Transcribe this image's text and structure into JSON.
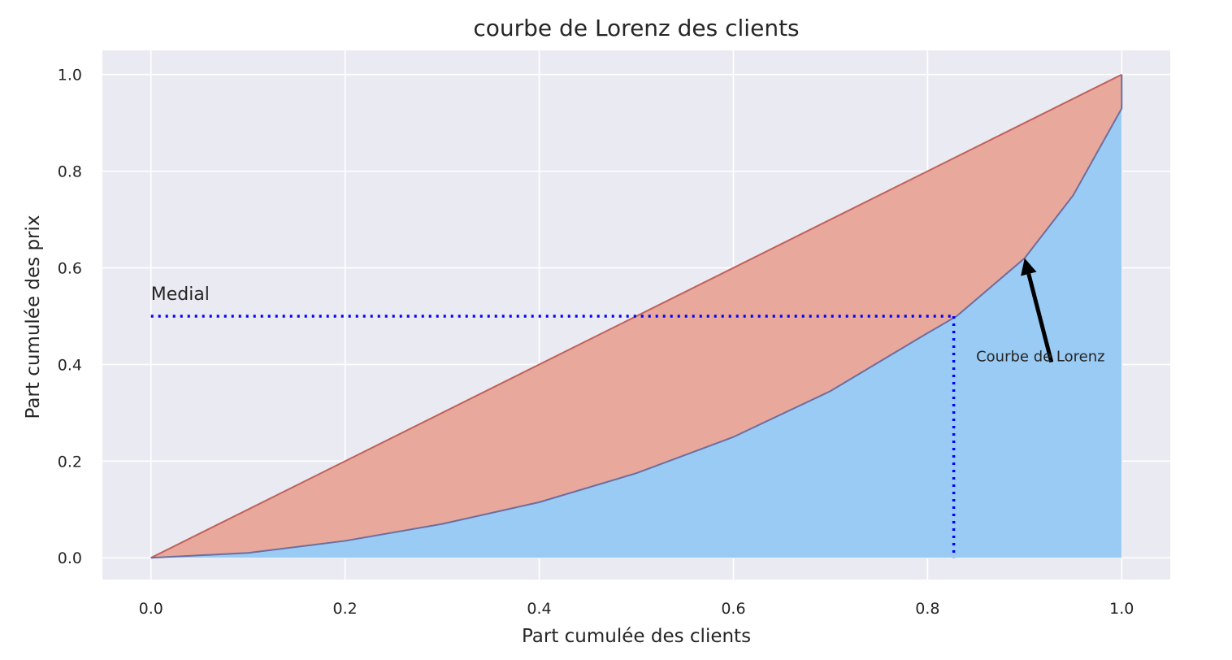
{
  "chart_data": {
    "type": "area",
    "title": "courbe de Lorenz des clients",
    "xlabel": "Part cumulée des clients",
    "ylabel": "Part cumulée des prix",
    "xlim": [
      -0.05,
      1.05
    ],
    "ylim": [
      -0.045,
      1.05
    ],
    "xticks": [
      "0.0",
      "0.2",
      "0.4",
      "0.6",
      "0.8",
      "1.0"
    ],
    "yticks": [
      "0.0",
      "0.2",
      "0.4",
      "0.6",
      "0.8",
      "1.0"
    ],
    "grid": true,
    "background": "#eaeaf2",
    "series": [
      {
        "kind": "equality_line",
        "x": [
          0.0,
          1.0
        ],
        "y": [
          0.0,
          1.0
        ],
        "fill_color": "#e8a89c",
        "line_color": "#c0605a"
      },
      {
        "kind": "lorenz_curve",
        "x": [
          0.0,
          0.1,
          0.2,
          0.3,
          0.4,
          0.5,
          0.6,
          0.7,
          0.8,
          0.83,
          0.9,
          0.95,
          1.0
        ],
        "y": [
          0.0,
          0.01,
          0.035,
          0.07,
          0.115,
          0.175,
          0.25,
          0.345,
          0.465,
          0.5,
          0.62,
          0.75,
          0.93
        ],
        "fill_color": "#9acbf4",
        "line_color": "#6a6fa0"
      }
    ],
    "medial": {
      "label": "Medial",
      "y": 0.5,
      "x": 0.827,
      "color": "#0000ff"
    },
    "annotation": {
      "text": "Courbe de Lorenz",
      "text_x": 0.85,
      "text_y": 0.4,
      "arrow_to_x": 0.9,
      "arrow_to_y": 0.62
    }
  }
}
